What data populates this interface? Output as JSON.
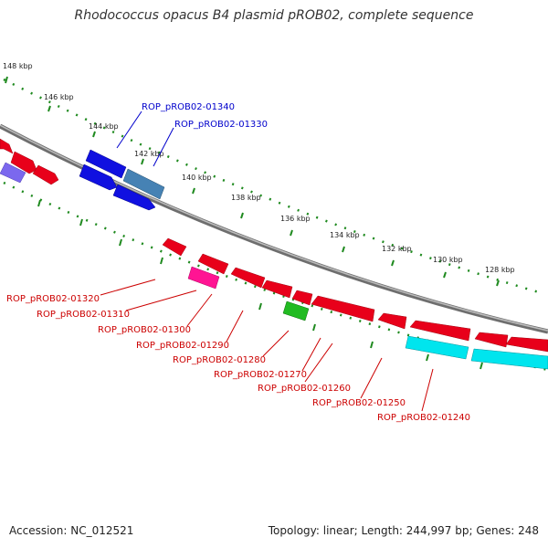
{
  "title": "Rhodococcus opacus B4 plasmid pROB02, complete sequence",
  "footer": {
    "accession": "Accession: NC_012521",
    "summary": "Topology: linear; Length: 244,997 bp; Genes: 248"
  },
  "colors": {
    "backbone": "#8c8c8c",
    "tick_dots": "#1f8a1f",
    "forward_label": "#0000cc",
    "reverse_label": "#cc0000",
    "red_gene": "#e8001a",
    "blue_gene": "#1010e0",
    "steel_gene": "#4682b4",
    "slate_gene": "#7b68ee",
    "pink_gene": "#ff1493",
    "green_gene": "#22bb22",
    "cyan_gene": "#00e5ee"
  },
  "scale_labels": [
    "148 kbp",
    "146 kbp",
    "144 kbp",
    "142 kbp",
    "140 kbp",
    "138 kbp",
    "136 kbp",
    "134 kbp",
    "132 kbp",
    "130 kbp",
    "128 kbp"
  ],
  "gene_labels_forward": [
    "ROP_pROB02-01340",
    "ROP_pROB02-01330"
  ],
  "gene_labels_reverse": [
    "ROP_pROB02-01320",
    "ROP_pROB02-01310",
    "ROP_pROB02-01300",
    "ROP_pROB02-01290",
    "ROP_pROB02-01280",
    "ROP_pROB02-01270",
    "ROP_pROB02-01260",
    "ROP_pROB02-01250",
    "ROP_pROB02-01240"
  ]
}
